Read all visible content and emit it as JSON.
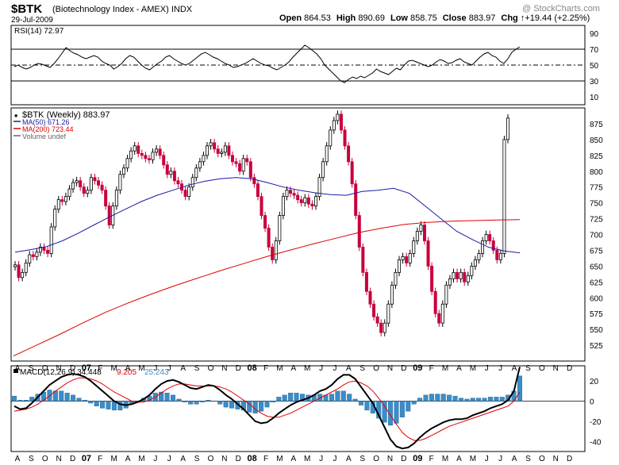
{
  "header": {
    "symbol": "$BTK",
    "name": "(Biotechnology Index - AMEX)",
    "exchange": "INDX",
    "date": "29-Jul-2009",
    "watermark": "@ StockCharts.com",
    "quote": [
      {
        "label": "Open",
        "value": "864.53"
      },
      {
        "label": "High",
        "value": "890.69"
      },
      {
        "label": "Low",
        "value": "858.75"
      },
      {
        "label": "Close",
        "value": "883.97"
      },
      {
        "label": "Chg",
        "value": "+19.44 (+2.25%)",
        "arrow": "up-arrow-icon"
      }
    ]
  },
  "chart_data": [
    {
      "type": "line",
      "panel": "rsi",
      "legend": "RSI(14) 72.97",
      "ylim": [
        0,
        100
      ],
      "yticks": [
        10,
        30,
        50,
        70,
        90
      ],
      "reference_lines": [
        30,
        50,
        70
      ],
      "series": [
        {
          "name": "RSI(14)",
          "values": [
            48,
            50,
            47,
            45,
            47,
            50,
            52,
            51,
            49,
            47,
            52,
            58,
            65,
            72,
            68,
            65,
            63,
            60,
            58,
            60,
            62,
            60,
            55,
            52,
            50,
            45,
            48,
            52,
            58,
            62,
            60,
            55,
            50,
            46,
            44,
            48,
            52,
            55,
            60,
            62,
            58,
            55,
            52,
            50,
            52,
            56,
            60,
            64,
            66,
            63,
            60,
            58,
            55,
            52,
            50,
            47,
            48,
            50,
            52,
            55,
            58,
            55,
            52,
            50,
            49,
            46,
            44,
            47,
            50,
            54,
            60,
            65,
            70,
            75,
            72,
            68,
            64,
            58,
            50,
            45,
            40,
            35,
            30,
            28,
            32,
            35,
            33,
            36,
            34,
            37,
            40,
            45,
            42,
            40,
            38,
            42,
            46,
            44,
            50,
            55,
            56,
            54,
            52,
            50,
            48,
            50,
            54,
            57,
            55,
            52,
            53,
            56,
            58,
            54,
            52,
            50,
            55,
            60,
            64,
            66,
            62,
            60,
            55,
            52,
            58,
            66,
            70,
            73
          ]
        }
      ],
      "color": "#000000"
    },
    {
      "type": "line",
      "panel": "price",
      "title": "$BTK (Weekly) 883.97",
      "ylim": [
        500,
        900
      ],
      "yticks": [
        525,
        550,
        575,
        600,
        625,
        650,
        675,
        700,
        725,
        750,
        775,
        800,
        825,
        850,
        875
      ],
      "x_labels": [
        "A",
        "S",
        "O",
        "N",
        "D",
        "07",
        "F",
        "M",
        "A",
        "M",
        "J",
        "J",
        "A",
        "S",
        "O",
        "N",
        "D",
        "08",
        "F",
        "M",
        "A",
        "M",
        "J",
        "J",
        "A",
        "S",
        "O",
        "N",
        "D",
        "09",
        "F",
        "M",
        "A",
        "M",
        "J",
        "J",
        "A",
        "S",
        "O",
        "N",
        "D"
      ],
      "legend": [
        {
          "label": "$BTK (Weekly) 883.97",
          "color": "#000000"
        },
        {
          "label": "MA(50) 671.26",
          "color": "#1a1aa6"
        },
        {
          "label": "MA(200) 723.44",
          "color": "#e00000"
        },
        {
          "label": "Volume undef",
          "color": "#666666"
        }
      ],
      "up_color": "#000000",
      "down_color": "#c8003c",
      "series": [
        {
          "name": "$BTK (Weekly)",
          "values": [
            652,
            632,
            640,
            655,
            668,
            665,
            672,
            680,
            675,
            670,
            712,
            740,
            755,
            752,
            760,
            772,
            782,
            785,
            775,
            765,
            770,
            790,
            785,
            778,
            770,
            745,
            715,
            745,
            770,
            795,
            805,
            820,
            832,
            840,
            828,
            825,
            820,
            818,
            830,
            835,
            825,
            810,
            795,
            800,
            785,
            780,
            770,
            760,
            775,
            790,
            805,
            815,
            825,
            840,
            845,
            835,
            828,
            830,
            840,
            825,
            815,
            812,
            800,
            820,
            815,
            790,
            780,
            760,
            730,
            710,
            680,
            660,
            690,
            730,
            760,
            770,
            765,
            762,
            755,
            750,
            758,
            748,
            745,
            760,
            790,
            815,
            840,
            865,
            880,
            890,
            865,
            840,
            815,
            780,
            730,
            680,
            640,
            610,
            590,
            570,
            560,
            545,
            560,
            590,
            620,
            640,
            660,
            665,
            655,
            670,
            690,
            705,
            715,
            690,
            650,
            610,
            575,
            560,
            590,
            620,
            630,
            640,
            630,
            640,
            625,
            635,
            650,
            660,
            670,
            690,
            700,
            690,
            675,
            660,
            670,
            850,
            884
          ]
        },
        {
          "name": "MA(50)",
          "values": [
            672,
            676,
            681,
            690,
            702,
            715,
            728,
            740,
            752,
            762,
            770,
            778,
            784,
            788,
            790,
            788,
            782,
            775,
            770,
            766,
            763,
            762,
            768,
            770,
            773,
            765,
            745,
            725,
            705,
            692,
            680,
            674,
            671
          ]
        },
        {
          "name": "MA(200)",
          "values": [
            508,
            525,
            542,
            560,
            577,
            592,
            606,
            619,
            631,
            643,
            654,
            665,
            675,
            685,
            694,
            703,
            710,
            716,
            719,
            721,
            722,
            723,
            723.4
          ]
        }
      ]
    },
    {
      "type": "bar",
      "panel": "macd",
      "legend": [
        {
          "label": "MACD(12,26,9)",
          "value": "34.448",
          "color": "#000000"
        },
        {
          "label": "",
          "value": "9.205",
          "color": "#e00000"
        },
        {
          "label": "",
          "value": "25.243",
          "color": "#3a8dc8"
        }
      ],
      "ylim": [
        -50,
        35
      ],
      "yticks": [
        -40,
        -20,
        0,
        20
      ],
      "series": [
        {
          "name": "MACD",
          "values": [
            -5,
            -8,
            -7,
            -2,
            4,
            10,
            16,
            20,
            24,
            26,
            27,
            26,
            24,
            20,
            15,
            10,
            5,
            0,
            -3,
            -4,
            -3,
            -1,
            2,
            6,
            12,
            17,
            20,
            21,
            19,
            16,
            13,
            12,
            14,
            16,
            15,
            11,
            6,
            2,
            -3,
            -8,
            -14,
            -20,
            -22,
            -21,
            -17,
            -12,
            -8,
            -4,
            -1,
            1,
            3,
            6,
            10,
            12,
            16,
            22,
            26,
            26,
            22,
            14,
            6,
            -2,
            -14,
            -26,
            -38,
            -45,
            -47,
            -46,
            -42,
            -36,
            -31,
            -27,
            -24,
            -21,
            -19,
            -18,
            -18,
            -17,
            -14,
            -12,
            -10,
            -7,
            -5,
            -3,
            1,
            10,
            34
          ]
        },
        {
          "name": "Signal",
          "values": [
            -10,
            -9,
            -8,
            -6,
            -3,
            1,
            5,
            10,
            14,
            18,
            21,
            23,
            23,
            22,
            20,
            17,
            13,
            9,
            6,
            3,
            0,
            -1,
            -1,
            1,
            4,
            8,
            12,
            15,
            17,
            17,
            16,
            15,
            15,
            15,
            15,
            14,
            12,
            9,
            5,
            1,
            -3,
            -8,
            -12,
            -15,
            -16,
            -16,
            -14,
            -12,
            -9,
            -6,
            -3,
            0,
            3,
            6,
            9,
            12,
            16,
            19,
            20,
            18,
            15,
            10,
            3,
            -5,
            -14,
            -23,
            -31,
            -36,
            -39,
            -39,
            -37,
            -34,
            -31,
            -28,
            -25,
            -23,
            -21,
            -19,
            -17,
            -15,
            -13,
            -11,
            -9,
            -7,
            -5,
            0,
            9
          ]
        },
        {
          "name": "Histogram",
          "values": [
            5,
            1,
            1,
            4,
            7,
            9,
            11,
            10,
            10,
            8,
            6,
            3,
            1,
            -2,
            -5,
            -7,
            -8,
            -9,
            -9,
            -7,
            -3,
            0,
            3,
            5,
            8,
            9,
            8,
            6,
            2,
            -1,
            -3,
            -3,
            -1,
            1,
            0,
            -3,
            -6,
            -7,
            -8,
            -9,
            -11,
            -12,
            -10,
            -6,
            -1,
            4,
            6,
            8,
            8,
            7,
            6,
            6,
            7,
            6,
            7,
            10,
            10,
            7,
            2,
            -4,
            -9,
            -12,
            -17,
            -21,
            -24,
            -22,
            -16,
            -10,
            -3,
            3,
            6,
            7,
            7,
            7,
            6,
            5,
            3,
            2,
            3,
            3,
            3,
            4,
            4,
            4,
            6,
            10,
            25
          ]
        }
      ]
    }
  ]
}
